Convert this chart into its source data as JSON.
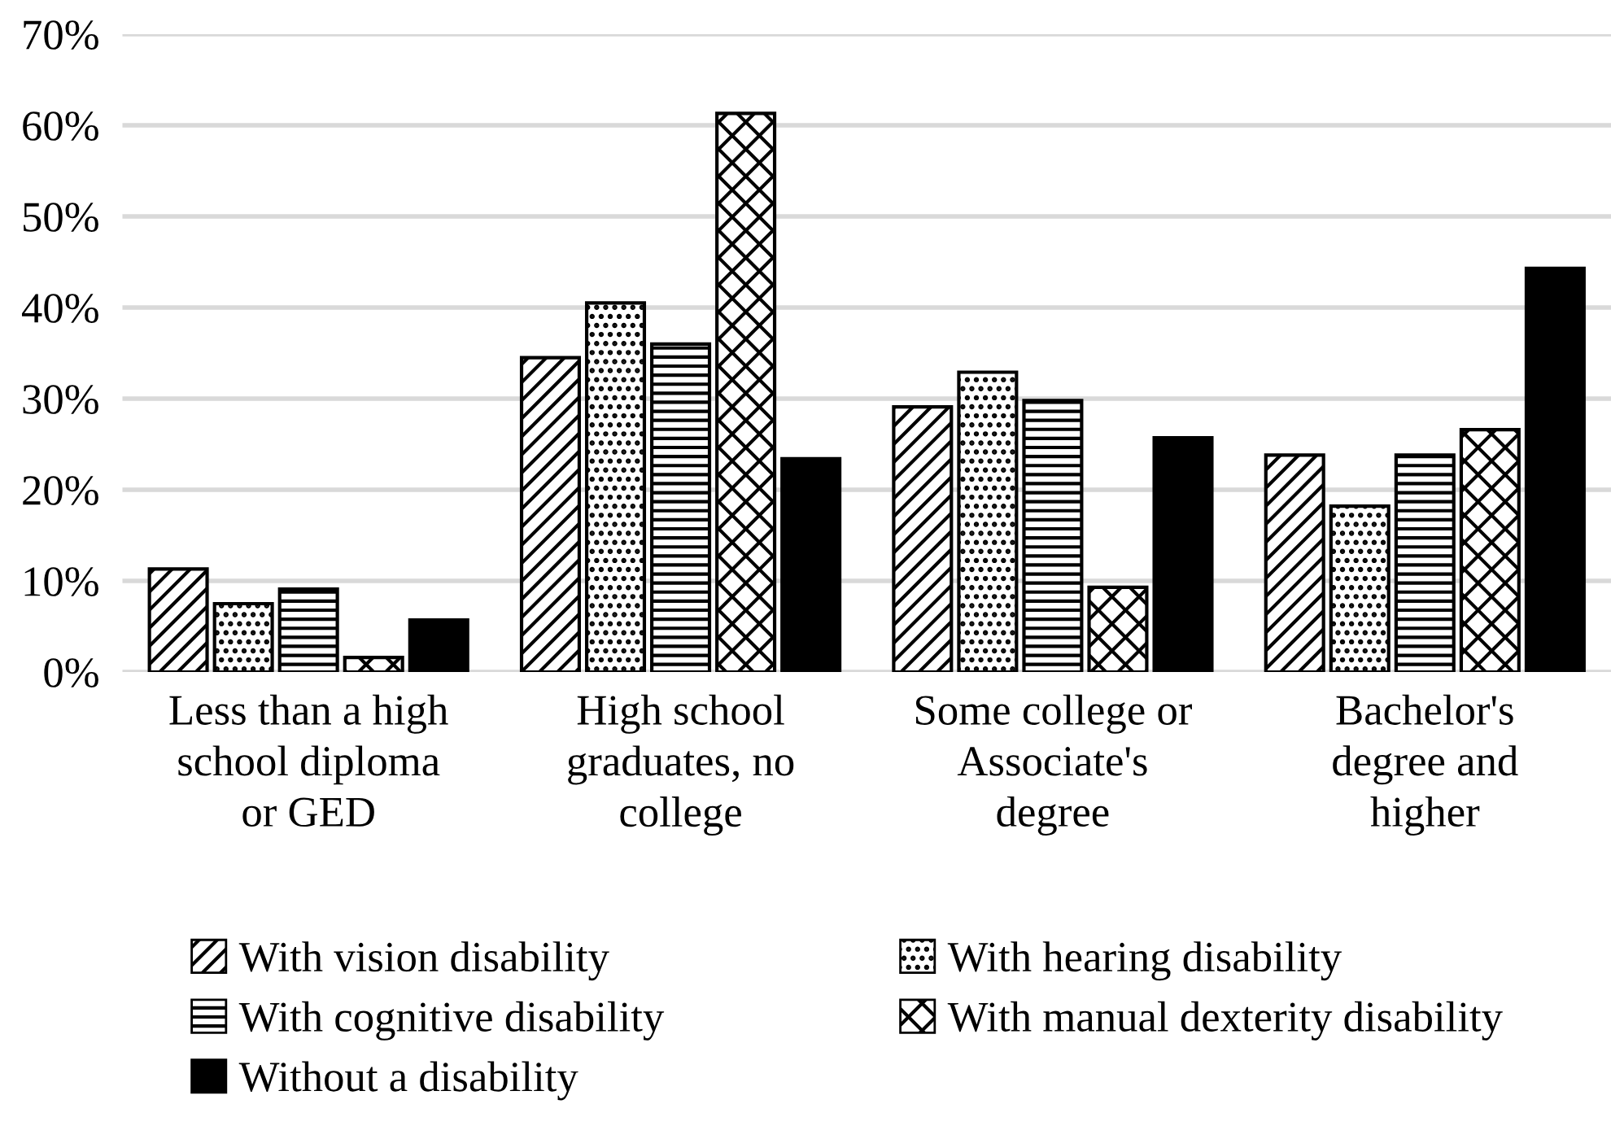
{
  "chart_data": {
    "type": "bar",
    "categories": [
      "Less than a high\nschool diploma\nor GED",
      "High school\ngraduates, no\ncollege",
      "Some college or\nAssociate's\ndegree",
      "Bachelor's\ndegree and\nhigher"
    ],
    "series": [
      {
        "name": "With vision disability",
        "color": "#000000",
        "values": [
          11.3,
          34.5,
          29.1,
          23.8
        ]
      },
      {
        "name": "With hearing disability",
        "color": "#000000",
        "values": [
          7.5,
          40.5,
          32.9,
          18.2
        ]
      },
      {
        "name": "With cognitive disability",
        "color": "#000000",
        "values": [
          9.1,
          36,
          29.8,
          23.8
        ]
      },
      {
        "name": "With manual dexterity disability",
        "color": "#000000",
        "values": [
          1.6,
          61.3,
          9.3,
          26.6
        ]
      },
      {
        "name": "Without a disability",
        "color": "#000000",
        "values": [
          5.7,
          23.4,
          25.7,
          44.3
        ]
      }
    ],
    "ylim": [
      0,
      70
    ],
    "yticks": [
      {
        "value": 0,
        "label": "0%"
      },
      {
        "value": 10,
        "label": "10%"
      },
      {
        "value": 20,
        "label": "20%"
      },
      {
        "value": 30,
        "label": "30%"
      },
      {
        "value": 40,
        "label": "40%"
      },
      {
        "value": 50,
        "label": "50%"
      },
      {
        "value": 60,
        "label": "60%"
      },
      {
        "value": 70,
        "label": "70%"
      }
    ],
    "grid": "y",
    "legend": "bottom"
  }
}
